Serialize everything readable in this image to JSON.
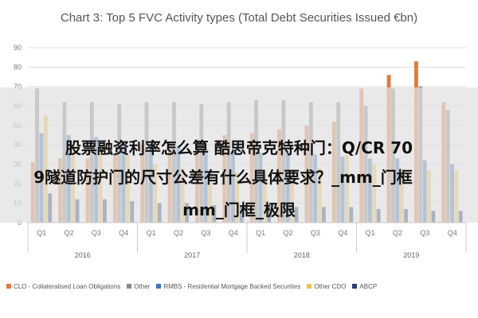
{
  "chart_data": {
    "type": "bar",
    "title": "Chart 3: Top 5 FVC Activity types (Total Debt Securities Issued €bn)",
    "ylim": [
      0,
      90
    ],
    "yticks": [
      0,
      10,
      20,
      30,
      40,
      50,
      60,
      70,
      80,
      90
    ],
    "grid": true,
    "legend_position": "bottom",
    "categories": [
      "Q1",
      "Q2",
      "Q3",
      "Q4",
      "Q1",
      "Q2",
      "Q3",
      "Q4",
      "Q1",
      "Q2",
      "Q3",
      "Q4",
      "Q1",
      "Q2",
      "Q3",
      "Q4"
    ],
    "groups": [
      {
        "label": "2016",
        "span": [
          0,
          3
        ]
      },
      {
        "label": "2017",
        "span": [
          4,
          7
        ]
      },
      {
        "label": "2018",
        "span": [
          8,
          11
        ]
      },
      {
        "label": "2019",
        "span": [
          12,
          15
        ]
      }
    ],
    "series": [
      {
        "name": "CLO - Collateralised Loan Obligations",
        "color": "#E07B39",
        "values": [
          31,
          33,
          33,
          35,
          40,
          42,
          43,
          45,
          46,
          48,
          50,
          52,
          69,
          76,
          83,
          62
        ]
      },
      {
        "name": "Other",
        "color": "#8A8A8A",
        "values": [
          69,
          62,
          62,
          61,
          62,
          62,
          61,
          62,
          63,
          63,
          62,
          62,
          60,
          69,
          70,
          58
        ]
      },
      {
        "name": "RMBS - Residential Mortgage Backed Securities",
        "color": "#3A78C2",
        "values": [
          46,
          45,
          44,
          41,
          40,
          39,
          38,
          37,
          36,
          36,
          35,
          34,
          33,
          33,
          32,
          30
        ]
      },
      {
        "name": "Other CDO",
        "color": "#F2C14E",
        "values": [
          55,
          40,
          40,
          35,
          30,
          28,
          27,
          26,
          25,
          25,
          28,
          35,
          30,
          28,
          27,
          27
        ]
      },
      {
        "name": "ABCP",
        "color": "#1F3F7A",
        "values": [
          15,
          12,
          12,
          11,
          10,
          10,
          9,
          9,
          9,
          8,
          8,
          8,
          7,
          7,
          6,
          6
        ]
      }
    ]
  },
  "overlay": {
    "line1": "股票融资利率怎么算 酷思帝克特种门：Q/CR 70",
    "line2": "9隧道防护门的尺寸公差有什么具体要求？_mm_门框",
    "line3": "mm_门框_极限"
  }
}
